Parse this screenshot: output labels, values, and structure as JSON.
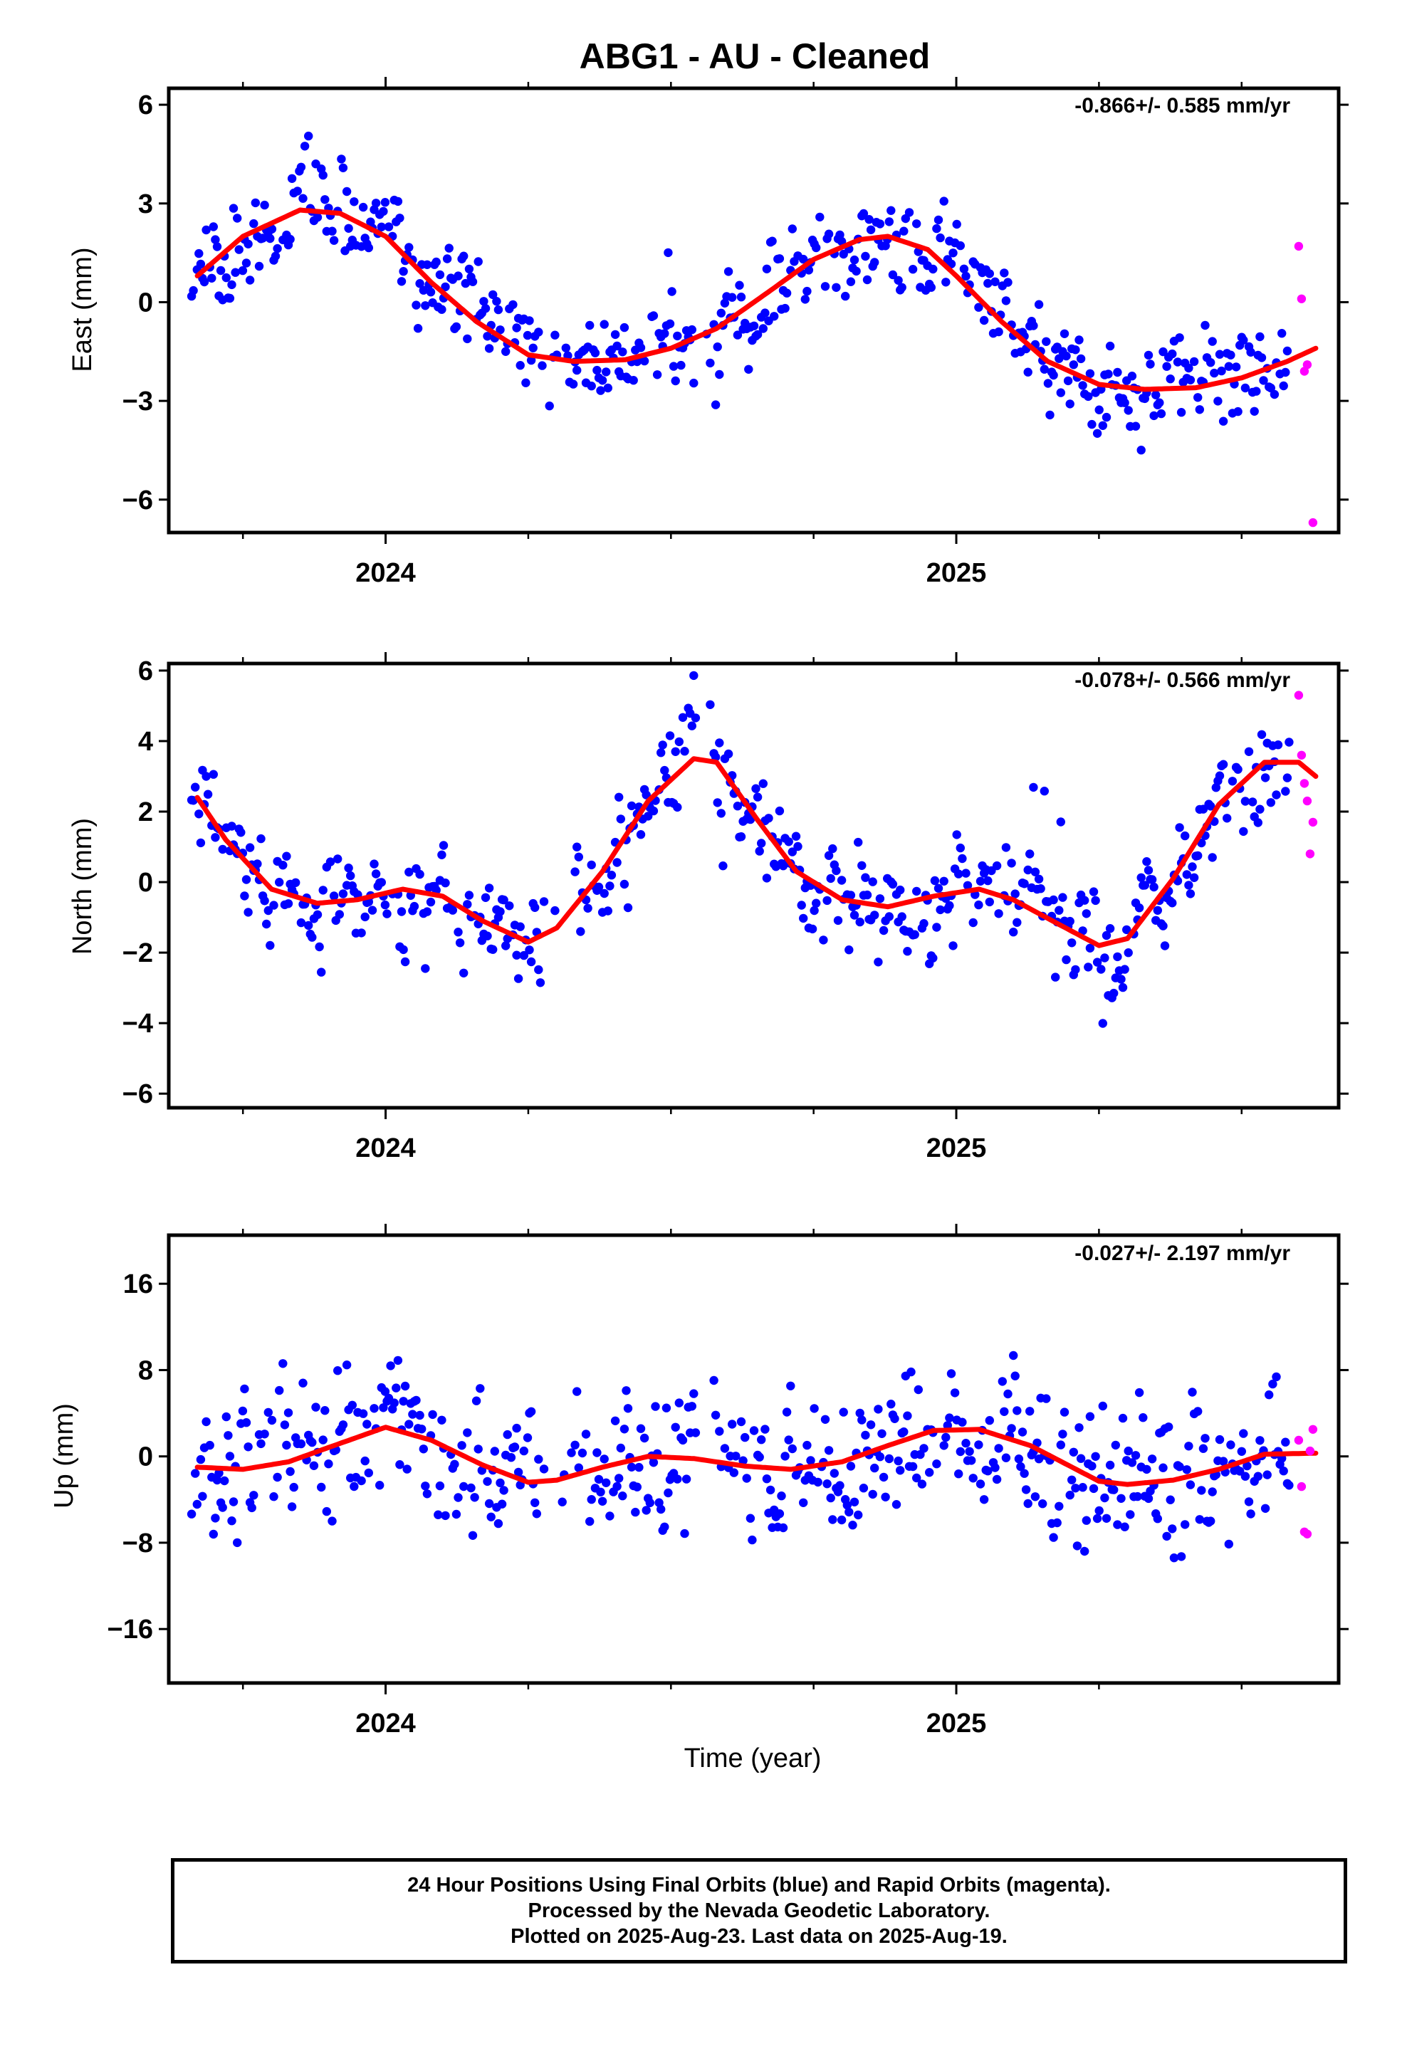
{
  "title": "ABG1  - AU - Cleaned",
  "xlabel": "Time (year)",
  "footer": [
    "24 Hour Positions Using Final Orbits (blue) and Rapid Orbits (magenta).",
    "Processed by the Nevada Geodetic Laboratory.",
    "Plotted on 2025-Aug-23. Last data on 2025-Aug-19."
  ],
  "colors": {
    "final": "#0000ff",
    "rapid": "#ff00ff",
    "model": "#ff0000",
    "axis": "#000000"
  },
  "chart_data": [
    {
      "type": "scatter",
      "component": "East",
      "ylabel": "East (mm)",
      "rate": "-0.866+/- 0.585 mm/yr",
      "xlim": [
        2023.62,
        2025.67
      ],
      "ylim": [
        -7,
        6.5
      ],
      "yticks": [
        -6,
        -3,
        0,
        3,
        6
      ],
      "ytick_labels": [
        "−6",
        "−3",
        "0",
        "3",
        "6"
      ],
      "xticks": [
        2024,
        2025
      ],
      "xtick_labels": [
        "2024",
        "2025"
      ],
      "xminor": [
        2023.75,
        2024.25,
        2024.5,
        2024.75,
        2025.25,
        2025.5
      ],
      "model": {
        "x": [
          2023.67,
          2023.75,
          2023.85,
          2023.92,
          2024.0,
          2024.08,
          2024.16,
          2024.25,
          2024.33,
          2024.42,
          2024.5,
          2024.58,
          2024.67,
          2024.75,
          2024.83,
          2024.88,
          2024.95,
          2025.0,
          2025.08,
          2025.16,
          2025.25,
          2025.33,
          2025.42,
          2025.5,
          2025.58,
          2025.63
        ],
        "y": [
          0.8,
          2.0,
          2.8,
          2.7,
          2.0,
          0.6,
          -0.6,
          -1.6,
          -1.8,
          -1.75,
          -1.4,
          -0.8,
          0.3,
          1.3,
          1.9,
          2.0,
          1.6,
          0.8,
          -0.6,
          -1.8,
          -2.5,
          -2.65,
          -2.6,
          -2.3,
          -1.8,
          -1.4
        ]
      },
      "rapid": {
        "x": [
          2025.6,
          2025.605,
          2025.61,
          2025.615,
          2025.625
        ],
        "y": [
          1.7,
          0.1,
          -2.1,
          -1.9,
          -6.7
        ]
      },
      "scatter_seed": 11,
      "scatter_sigma": 1.05,
      "scatter_gaps": [
        [
          2024.27,
          2024.33
        ],
        [
          2024.545,
          2024.575
        ]
      ]
    },
    {
      "type": "scatter",
      "component": "North",
      "ylabel": "North (mm)",
      "rate": "-0.078+/- 0.566 mm/yr",
      "xlim": [
        2023.62,
        2025.67
      ],
      "ylim": [
        -6.4,
        6.2
      ],
      "yticks": [
        -6,
        -4,
        -2,
        0,
        2,
        4,
        6
      ],
      "ytick_labels": [
        "−6",
        "−4",
        "−2",
        "0",
        "2",
        "4",
        "6"
      ],
      "xticks": [
        2024,
        2025
      ],
      "xtick_labels": [
        "2024",
        "2025"
      ],
      "xminor": [
        2023.75,
        2024.25,
        2024.5,
        2024.75,
        2025.25,
        2025.5
      ],
      "model": {
        "x": [
          2023.67,
          2023.72,
          2023.8,
          2023.88,
          2023.95,
          2024.03,
          2024.1,
          2024.17,
          2024.25,
          2024.3,
          2024.38,
          2024.46,
          2024.54,
          2024.58,
          2024.65,
          2024.72,
          2024.8,
          2024.88,
          2024.96,
          2025.04,
          2025.1,
          2025.18,
          2025.25,
          2025.3,
          2025.38,
          2025.46,
          2025.54,
          2025.6,
          2025.63
        ],
        "y": [
          2.4,
          1.2,
          -0.2,
          -0.6,
          -0.5,
          -0.2,
          -0.4,
          -1.1,
          -1.7,
          -1.3,
          0.3,
          2.3,
          3.5,
          3.4,
          1.8,
          0.3,
          -0.5,
          -0.7,
          -0.4,
          -0.2,
          -0.5,
          -1.2,
          -1.8,
          -1.6,
          0.1,
          2.2,
          3.4,
          3.4,
          3.0
        ]
      },
      "rapid": {
        "x": [
          2025.6,
          2025.605,
          2025.61,
          2025.615,
          2025.62,
          2025.625
        ],
        "y": [
          5.3,
          3.6,
          2.8,
          2.3,
          0.8,
          1.7
        ]
      },
      "scatter_seed": 23,
      "scatter_sigma": 1.0,
      "scatter_gaps": [
        [
          2024.27,
          2024.33
        ],
        [
          2024.545,
          2024.575
        ]
      ]
    },
    {
      "type": "scatter",
      "component": "Up",
      "ylabel": "Up (mm)",
      "rate": "-0.027+/- 2.197 mm/yr",
      "xlim": [
        2023.62,
        2025.67
      ],
      "ylim": [
        -21,
        20.5
      ],
      "yticks": [
        -16,
        -8,
        0,
        8,
        16
      ],
      "ytick_labels": [
        "−16",
        "−8",
        "0",
        "8",
        "16"
      ],
      "xticks": [
        2024,
        2025
      ],
      "xtick_labels": [
        "2024",
        "2025"
      ],
      "xminor": [
        2023.75,
        2024.25,
        2024.5,
        2024.75,
        2025.25,
        2025.5
      ],
      "model": {
        "x": [
          2023.67,
          2023.75,
          2023.83,
          2023.92,
          2024.0,
          2024.08,
          2024.17,
          2024.25,
          2024.3,
          2024.38,
          2024.46,
          2024.54,
          2024.63,
          2024.71,
          2024.8,
          2024.88,
          2024.96,
          2025.04,
          2025.13,
          2025.21,
          2025.25,
          2025.3,
          2025.38,
          2025.46,
          2025.54,
          2025.63
        ],
        "y": [
          -1.0,
          -1.2,
          -0.5,
          1.2,
          2.7,
          1.5,
          -0.8,
          -2.4,
          -2.2,
          -1.0,
          0.0,
          -0.2,
          -0.9,
          -1.2,
          -0.5,
          1.0,
          2.4,
          2.5,
          1.0,
          -1.2,
          -2.3,
          -2.6,
          -2.2,
          -1.2,
          0.2,
          0.3
        ]
      },
      "rapid": {
        "x": [
          2025.6,
          2025.605,
          2025.61,
          2025.615,
          2025.62,
          2025.625
        ],
        "y": [
          1.5,
          -2.8,
          -7.0,
          -7.2,
          0.5,
          2.5
        ]
      },
      "scatter_seed": 37,
      "scatter_sigma": 4.6,
      "scatter_gaps": [
        [
          2024.27,
          2024.33
        ],
        [
          2024.545,
          2024.575
        ]
      ]
    }
  ]
}
